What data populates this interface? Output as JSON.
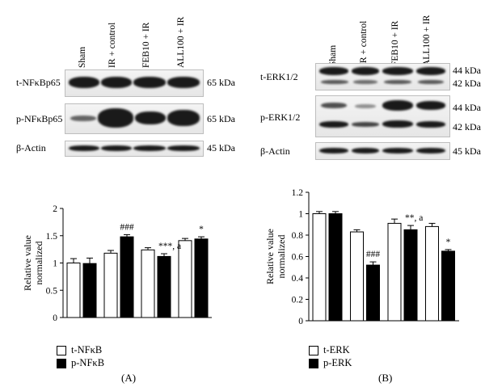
{
  "panels": {
    "A": {
      "letter": "(A)",
      "lanes": [
        "Sham",
        "IR + control",
        "FEB10 + IR",
        "ALL100 + IR"
      ],
      "blots": [
        {
          "label": "t-NFκBp65",
          "kda": "65 kDa"
        },
        {
          "label": "p-NFκBp65",
          "kda": "65 kDa"
        },
        {
          "label": "β-Actin",
          "kda": "45 kDa"
        }
      ],
      "legend": [
        "t-NFκB",
        "p-NFκB"
      ]
    },
    "B": {
      "letter": "(B)",
      "lanes": [
        "Sham",
        "IR + control",
        "FEB10 + IR",
        "ALL100 + IR"
      ],
      "blots": [
        {
          "label": "t-ERK1/2",
          "kda": [
            "44 kDa",
            "42 kDa"
          ]
        },
        {
          "label": "p-ERK1/2",
          "kda": [
            "44 kDa",
            "42 kDa"
          ]
        },
        {
          "label": "β-Actin",
          "kda": "45 kDa"
        }
      ],
      "legend": [
        "t-ERK",
        "p-ERK"
      ]
    }
  },
  "chart_data": [
    {
      "type": "bar",
      "ylabel": "Relative value\nnormalized",
      "ylim": [
        0,
        2
      ],
      "yticks": [
        "0",
        "0.5",
        "1",
        "1.5",
        "2"
      ],
      "categories": [
        "Sham",
        "IR + control",
        "FEB10 + IR",
        "ALL100 + IR"
      ],
      "series": [
        {
          "name": "t-NFκB",
          "fill": "#ffffff",
          "values": [
            1.0,
            1.18,
            1.24,
            1.41
          ],
          "errors": [
            0.08,
            0.05,
            0.04,
            0.04
          ]
        },
        {
          "name": "p-NFκB",
          "fill": "#000000",
          "values": [
            0.99,
            1.48,
            1.12,
            1.44
          ],
          "errors": [
            0.1,
            0.04,
            0.05,
            0.04
          ]
        }
      ],
      "annotations": [
        {
          "category": 1,
          "series": 1,
          "text": "###"
        },
        {
          "category": 2,
          "series": 1,
          "text": "***, a"
        },
        {
          "category": 3,
          "series": 1,
          "text": "*"
        }
      ]
    },
    {
      "type": "bar",
      "ylabel": "Relative value\nnormalized",
      "ylim": [
        0,
        1.2
      ],
      "yticks": [
        "0",
        "0.2",
        "0.4",
        "0.6",
        "0.8",
        "1",
        "1.2"
      ],
      "categories": [
        "Sham",
        "IR + control",
        "FEB10 + IR",
        "ALL100 + IR"
      ],
      "series": [
        {
          "name": "t-ERK",
          "fill": "#ffffff",
          "values": [
            1.0,
            0.83,
            0.91,
            0.88
          ],
          "errors": [
            0.02,
            0.02,
            0.04,
            0.03
          ]
        },
        {
          "name": "p-ERK",
          "fill": "#000000",
          "values": [
            1.0,
            0.52,
            0.85,
            0.65
          ],
          "errors": [
            0.02,
            0.03,
            0.04,
            0.015
          ]
        }
      ],
      "annotations": [
        {
          "category": 1,
          "series": 1,
          "text": "###"
        },
        {
          "category": 2,
          "series": 1,
          "text": "**, a"
        },
        {
          "category": 3,
          "series": 1,
          "text": "*"
        }
      ]
    }
  ]
}
